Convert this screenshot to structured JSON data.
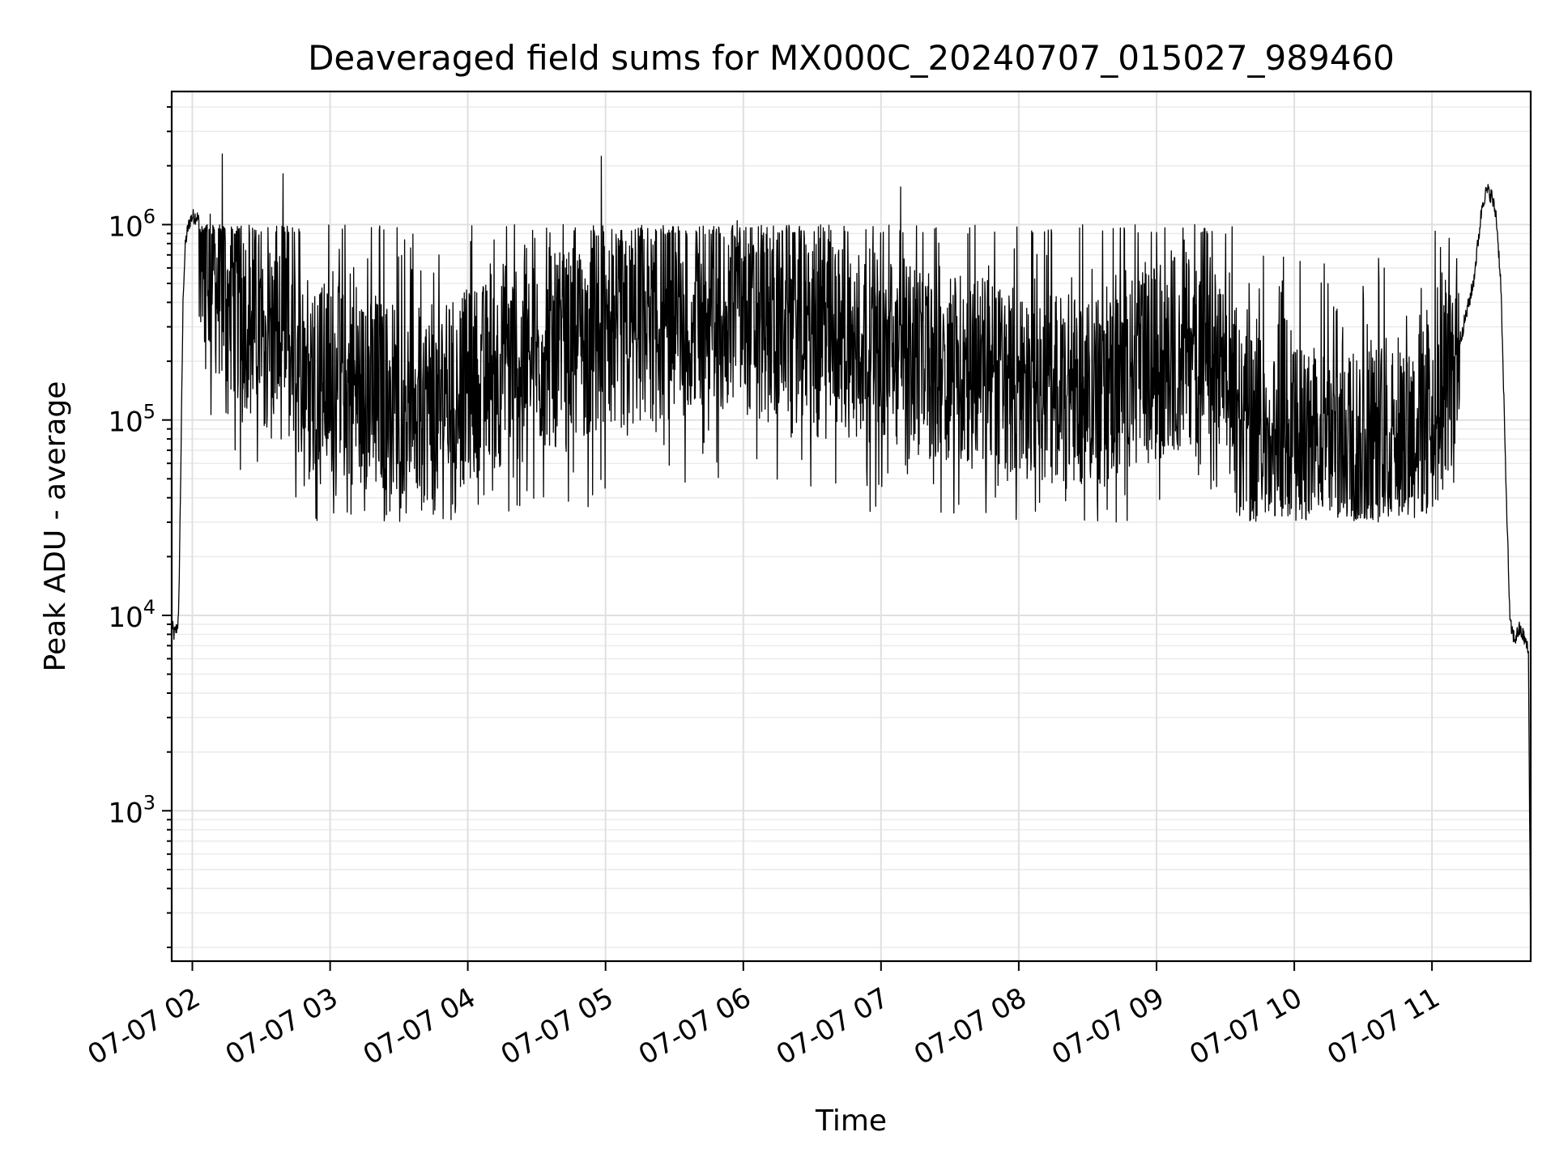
{
  "chart_data": {
    "type": "line",
    "title": "Deaveraged field sums for MX000C_20240707_015027_989460",
    "xlabel": "Time",
    "ylabel": "Peak ADU - average",
    "y_scale": "log",
    "grid": "on (major and minor)",
    "xlim": [
      "07-07 01:51",
      "07-07 11:43"
    ],
    "ylim": [
      170,
      4800000
    ],
    "x_ticks": [
      {
        "time": "07-07 02:00",
        "label": "07-07 02"
      },
      {
        "time": "07-07 03:00",
        "label": "07-07 03"
      },
      {
        "time": "07-07 04:00",
        "label": "07-07 04"
      },
      {
        "time": "07-07 05:00",
        "label": "07-07 05"
      },
      {
        "time": "07-07 06:00",
        "label": "07-07 06"
      },
      {
        "time": "07-07 07:00",
        "label": "07-07 07"
      },
      {
        "time": "07-07 08:00",
        "label": "07-07 08"
      },
      {
        "time": "07-07 09:00",
        "label": "07-07 09"
      },
      {
        "time": "07-07 10:00",
        "label": "07-07 10"
      },
      {
        "time": "07-07 11:00",
        "label": "07-07 11"
      }
    ],
    "y_ticks": [
      {
        "value": 1000,
        "base": "10",
        "exp": "3"
      },
      {
        "value": 10000,
        "base": "10",
        "exp": "4"
      },
      {
        "value": 100000,
        "base": "10",
        "exp": "5"
      },
      {
        "value": 1000000,
        "base": "10",
        "exp": "6"
      }
    ],
    "series": [
      {
        "color": "#000000",
        "x": [
          "07-07 01:51",
          "07-07 01:52",
          "07-07 01:53",
          "07-07 01:54",
          "07-07 01:55",
          "07-07 01:56",
          "07-07 01:57",
          "07-07 01:58",
          "07-07 01:59",
          "07-07 02:00",
          "07-07 02:02",
          "07-07 02:04",
          "07-07 02:06",
          "07-07 02:08",
          "07-07 02:12",
          "07-07 02:16",
          "07-07 02:20",
          "07-07 02:25",
          "07-07 02:30",
          "07-07 02:35",
          "07-07 02:40",
          "07-07 02:45",
          "07-07 02:50",
          "07-07 02:55",
          "07-07 03:00",
          "07-07 03:05",
          "07-07 03:10",
          "07-07 03:15",
          "07-07 03:20",
          "07-07 03:25",
          "07-07 03:30",
          "07-07 03:35",
          "07-07 03:40",
          "07-07 03:45",
          "07-07 03:50",
          "07-07 03:55",
          "07-07 04:00",
          "07-07 04:10",
          "07-07 04:20",
          "07-07 04:30",
          "07-07 04:40",
          "07-07 04:50",
          "07-07 05:00",
          "07-07 05:10",
          "07-07 05:20",
          "07-07 05:30",
          "07-07 05:40",
          "07-07 05:50",
          "07-07 06:00",
          "07-07 06:10",
          "07-07 06:20",
          "07-07 06:30",
          "07-07 06:40",
          "07-07 06:50",
          "07-07 07:00",
          "07-07 07:10",
          "07-07 07:20",
          "07-07 07:30",
          "07-07 07:40",
          "07-07 07:50",
          "07-07 08:00",
          "07-07 08:10",
          "07-07 08:20",
          "07-07 08:30",
          "07-07 08:40",
          "07-07 08:50",
          "07-07 09:00",
          "07-07 09:10",
          "07-07 09:20",
          "07-07 09:30",
          "07-07 09:40",
          "07-07 09:50",
          "07-07 10:00",
          "07-07 10:10",
          "07-07 10:20",
          "07-07 10:30",
          "07-07 10:40",
          "07-07 10:50",
          "07-07 11:00",
          "07-07 11:05",
          "07-07 11:10",
          "07-07 11:15",
          "07-07 11:18",
          "07-07 11:20",
          "07-07 11:22",
          "07-07 11:24",
          "07-07 11:26",
          "07-07 11:28",
          "07-07 11:30",
          "07-07 11:32",
          "07-07 11:34",
          "07-07 11:36",
          "07-07 11:38",
          "07-07 11:40",
          "07-07 11:42",
          "07-07 11:43"
        ],
        "y_median": [
          9000,
          8000,
          8500,
          9500,
          60000,
          450000,
          800000,
          950000,
          1050000,
          1100000,
          1100000,
          950000,
          700000,
          560000,
          480000,
          420000,
          380000,
          340000,
          300000,
          270000,
          240000,
          210000,
          190000,
          170000,
          160000,
          150000,
          145000,
          140000,
          135000,
          132000,
          130000,
          125000,
          120000,
          118000,
          125000,
          135000,
          150000,
          170000,
          190000,
          210000,
          230000,
          245000,
          260000,
          280000,
          300000,
          320000,
          330000,
          340000,
          335000,
          325000,
          310000,
          290000,
          270000,
          250000,
          230000,
          215000,
          200000,
          190000,
          180000,
          170000,
          160000,
          150000,
          145000,
          140000,
          150000,
          170000,
          200000,
          230000,
          240000,
          150000,
          95000,
          80000,
          75000,
          75000,
          78000,
          80000,
          85000,
          90000,
          100000,
          130000,
          200000,
          350000,
          500000,
          800000,
          1300000,
          1500000,
          1400000,
          1100000,
          500000,
          60000,
          9000,
          7500,
          8500,
          7800,
          6500,
          180
        ]
      }
    ]
  }
}
